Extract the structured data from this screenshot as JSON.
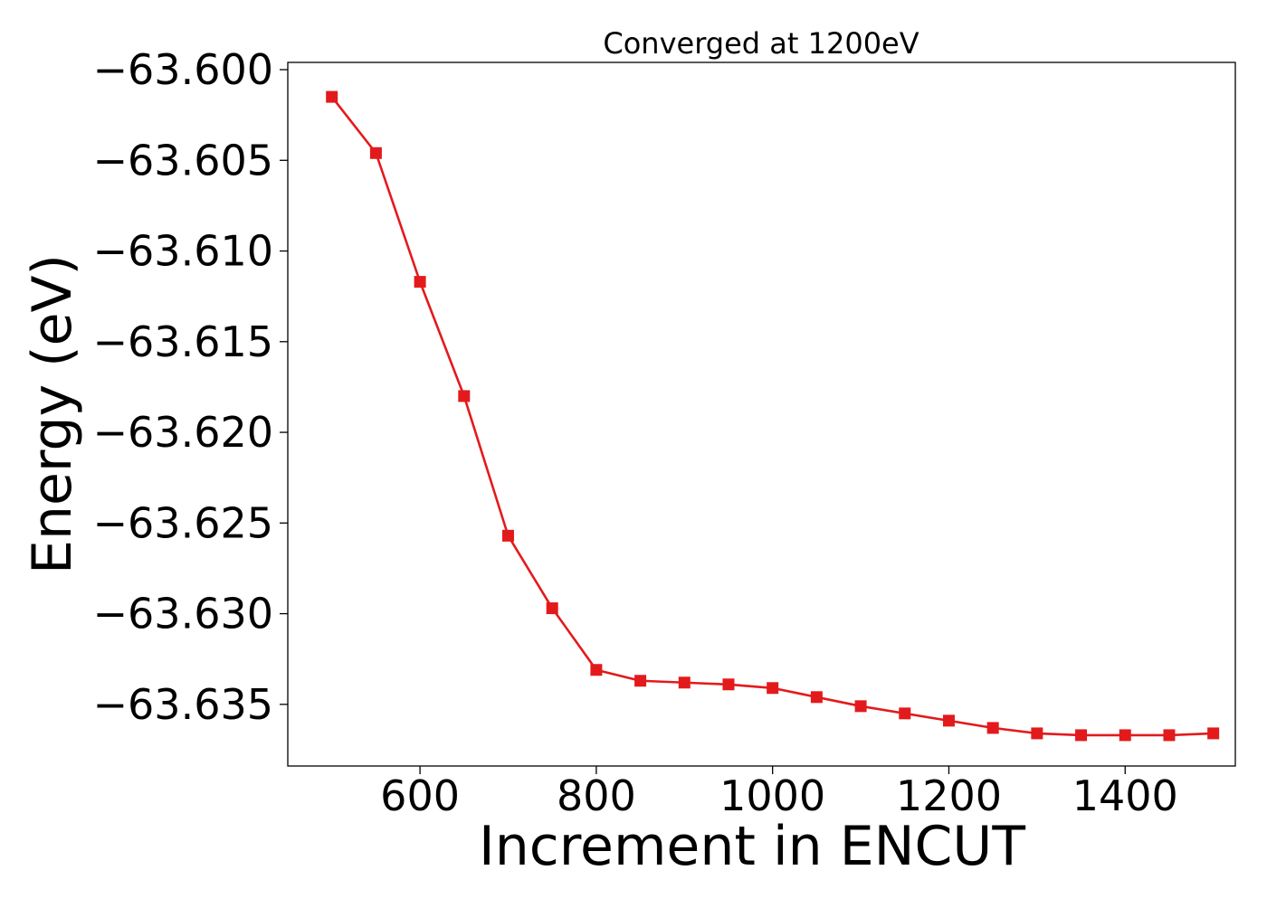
{
  "chart_data": {
    "type": "line",
    "title": "Converged at 1200eV",
    "xlabel": "Increment in ENCUT",
    "ylabel": "Energy (eV)",
    "xlim": [
      450,
      1525
    ],
    "ylim": [
      -63.6384,
      -63.5996
    ],
    "xticks": [
      600,
      800,
      1000,
      1200,
      1400
    ],
    "xtick_labels": [
      "600",
      "800",
      "1000",
      "1200",
      "1400"
    ],
    "yticks": [
      -63.6,
      -63.605,
      -63.61,
      -63.615,
      -63.62,
      -63.625,
      -63.63,
      -63.635
    ],
    "ytick_labels": [
      "−63.600",
      "−63.605",
      "−63.610",
      "−63.615",
      "−63.620",
      "−63.625",
      "−63.630",
      "−63.635"
    ],
    "grid": false,
    "series": [
      {
        "color": "#e31a1c",
        "marker": "square",
        "x": [
          500,
          550,
          600,
          650,
          700,
          750,
          800,
          850,
          900,
          950,
          1000,
          1050,
          1100,
          1150,
          1200,
          1250,
          1300,
          1350,
          1400,
          1450,
          1500
        ],
        "y": [
          -63.6015,
          -63.6046,
          -63.6117,
          -63.618,
          -63.6257,
          -63.6297,
          -63.6331,
          -63.6337,
          -63.6338,
          -63.6339,
          -63.6341,
          -63.6346,
          -63.6351,
          -63.6355,
          -63.6359,
          -63.6363,
          -63.6366,
          -63.6367,
          -63.6367,
          -63.6367,
          -63.6366
        ]
      }
    ]
  }
}
